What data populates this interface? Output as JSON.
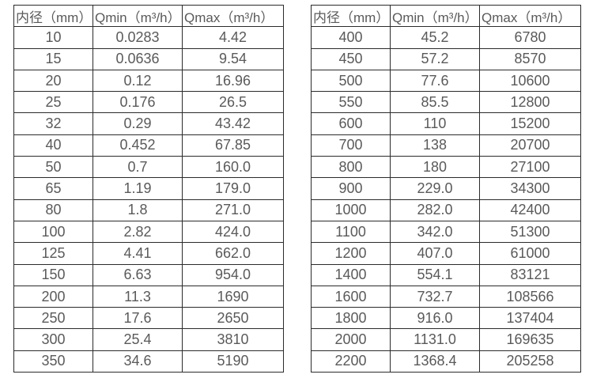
{
  "colors": {
    "background": "#ffffff",
    "border": "#2b2b2b",
    "text": "#5a5a5a"
  },
  "tables": [
    {
      "headers": [
        "内径（mm）",
        "Qmin（m³/h）",
        "Qmax（m³/h）"
      ],
      "rows": [
        [
          "10",
          "0.0283",
          "4.42"
        ],
        [
          "15",
          "0.0636",
          "9.54"
        ],
        [
          "20",
          "0.12",
          "16.96"
        ],
        [
          "25",
          "0.176",
          "26.5"
        ],
        [
          "32",
          "0.29",
          "43.42"
        ],
        [
          "40",
          "0.452",
          "67.85"
        ],
        [
          "50",
          "0.7",
          "160.0"
        ],
        [
          "65",
          "1.19",
          "179.0"
        ],
        [
          "80",
          "1.8",
          "271.0"
        ],
        [
          "100",
          "2.82",
          "424.0"
        ],
        [
          "125",
          "4.41",
          "662.0"
        ],
        [
          "150",
          "6.63",
          "954.0"
        ],
        [
          "200",
          "11.3",
          "1690"
        ],
        [
          "250",
          "17.6",
          "2650"
        ],
        [
          "300",
          "25.4",
          "3810"
        ],
        [
          "350",
          "34.6",
          "5190"
        ]
      ]
    },
    {
      "headers": [
        "内径（mm）",
        "Qmin（m³/h）",
        "Qmax（m³/h）"
      ],
      "rows": [
        [
          "400",
          "45.2",
          "6780"
        ],
        [
          "450",
          "57.2",
          "8570"
        ],
        [
          "500",
          "77.6",
          "10600"
        ],
        [
          "550",
          "85.5",
          "12800"
        ],
        [
          "600",
          "110",
          "15200"
        ],
        [
          "700",
          "138",
          "20700"
        ],
        [
          "800",
          "180",
          "27100"
        ],
        [
          "900",
          "229.0",
          "34300"
        ],
        [
          "1000",
          "282.0",
          "42400"
        ],
        [
          "1100",
          "342.0",
          "51300"
        ],
        [
          "1200",
          "407.0",
          "61000"
        ],
        [
          "1400",
          "554.1",
          "83121"
        ],
        [
          "1600",
          "732.7",
          "108566"
        ],
        [
          "1800",
          "916.0",
          "137404"
        ],
        [
          "2000",
          "1131.0",
          "169635"
        ],
        [
          "2200",
          "1368.4",
          "205258"
        ]
      ]
    }
  ]
}
